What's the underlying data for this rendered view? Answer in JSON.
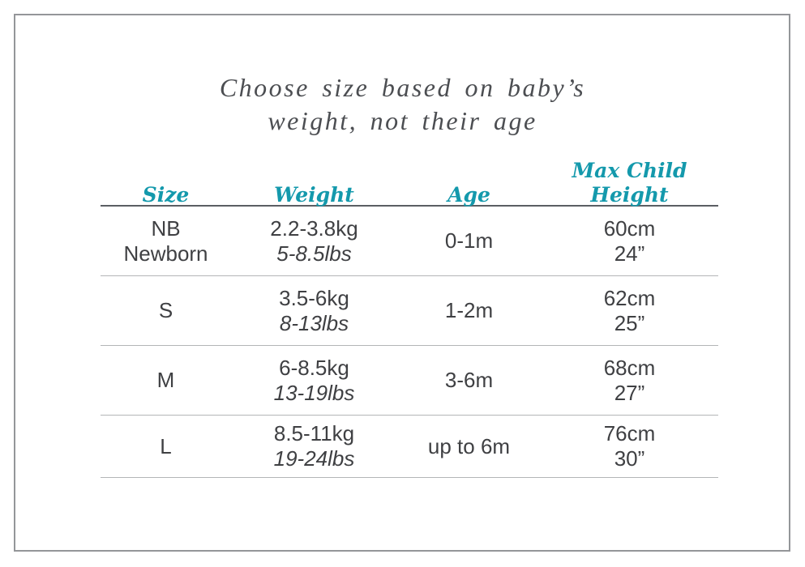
{
  "title_lines": {
    "line1": "Choose size based on baby’s",
    "line2": "weight, not their age"
  },
  "chart_data": {
    "type": "table",
    "title": "Choose size based on baby’s weight, not their age",
    "columns": [
      "Size",
      "Weight",
      "Age",
      "Max Child Height"
    ],
    "rows": [
      {
        "size_code": "NB",
        "size_label": "Newborn",
        "weight_kg": "2.2-3.8kg",
        "weight_lbs": "5-8.5lbs",
        "age": "0-1m",
        "height_cm": "60cm",
        "height_in": "24”"
      },
      {
        "size_code": "S",
        "weight_kg": "3.5-6kg",
        "weight_lbs": "8-13lbs",
        "age": "1-2m",
        "height_cm": "62cm",
        "height_in": "25”"
      },
      {
        "size_code": "M",
        "weight_kg": "6-8.5kg",
        "weight_lbs": "13-19lbs",
        "age": "3-6m",
        "height_cm": "68cm",
        "height_in": "27”"
      },
      {
        "size_code": "L",
        "weight_kg": "8.5-11kg",
        "weight_lbs": "19-24lbs",
        "age": "up to 6m",
        "height_cm": "76cm",
        "height_in": "30”"
      }
    ]
  },
  "colors": {
    "accent_teal": "#1499ac",
    "body_text": "#3f4043",
    "title_text": "#4c4e52",
    "header_rule": "#5b5e63",
    "row_rule": "#b3b5b7",
    "frame_border": "#949699"
  }
}
